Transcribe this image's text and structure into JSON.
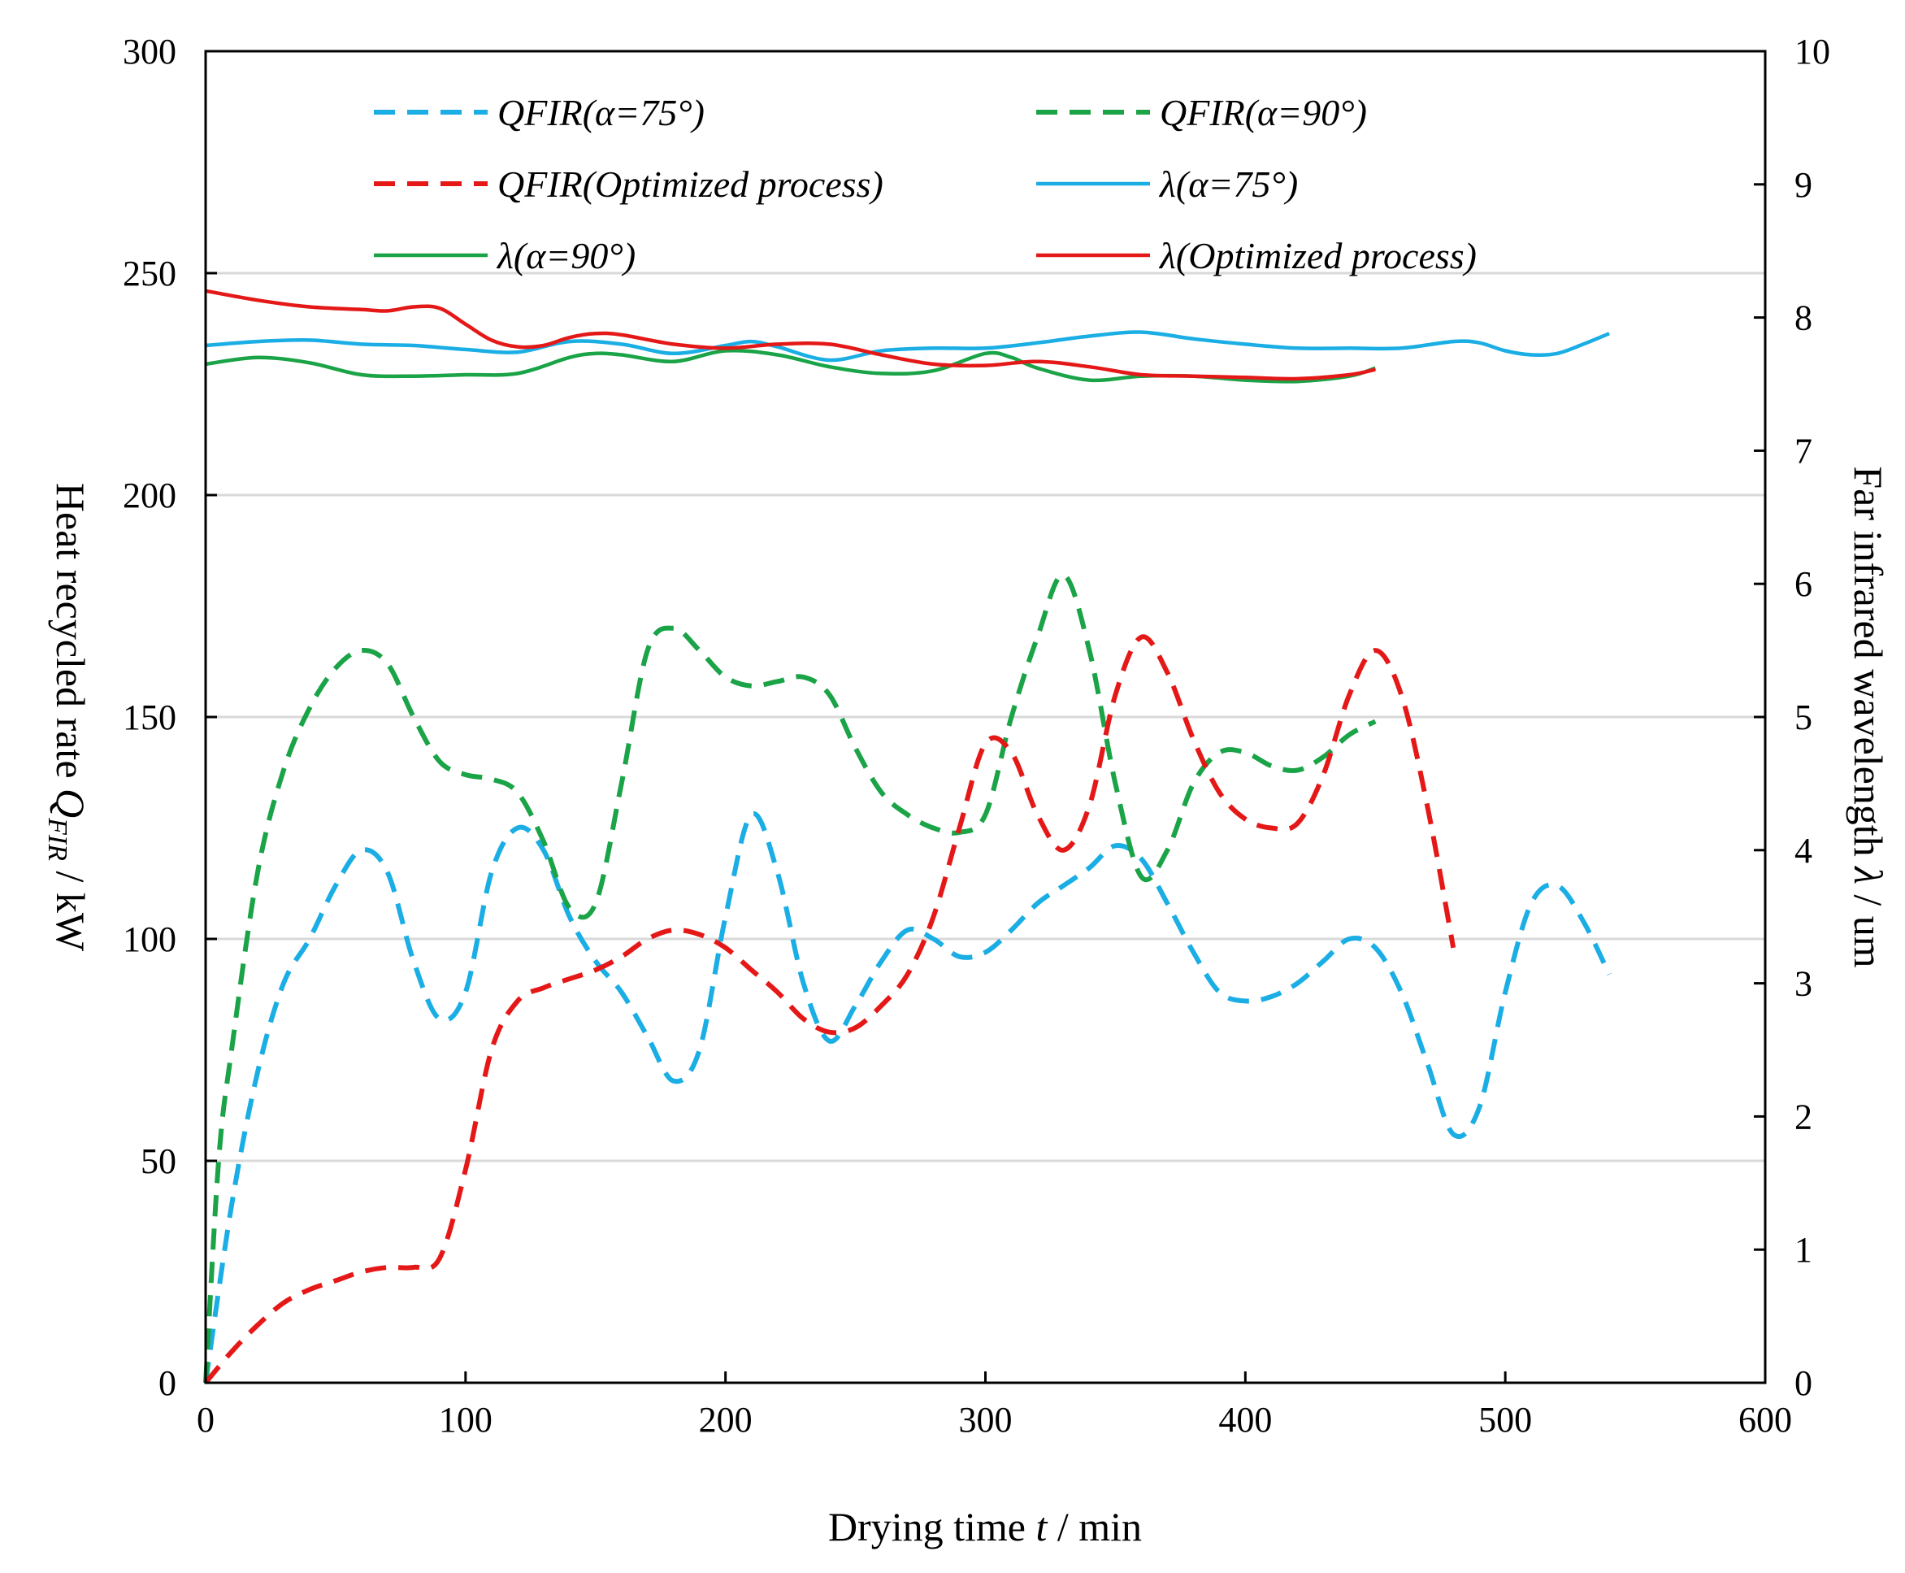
{
  "chart_data": {
    "type": "line",
    "x_axis": {
      "label_prefix": "Drying time ",
      "label_var": "t",
      "label_suffix": " / min",
      "range": [
        0,
        600
      ],
      "ticks": [
        0,
        100,
        200,
        300,
        400,
        500,
        600
      ]
    },
    "y_axis_left": {
      "label_prefix": "Heat recycled rate ",
      "label_var": "Q",
      "label_sub": "FIR",
      "label_suffix": " / kW",
      "range": [
        0,
        300
      ],
      "ticks": [
        0,
        50,
        100,
        150,
        200,
        250,
        300
      ]
    },
    "y_axis_right": {
      "label_prefix": "Far infrared wavelength ",
      "label_var": "λ",
      "label_suffix": " / um",
      "range": [
        0,
        10
      ],
      "ticks": [
        0,
        1,
        2,
        3,
        4,
        5,
        6,
        7,
        8,
        9,
        10
      ]
    },
    "grid": "horizontal",
    "legend_position": "top",
    "series": [
      {
        "name": "QFIR(α=75°)",
        "axis": "left",
        "style": "dashed",
        "color": "#1aaee5",
        "x": [
          0,
          10,
          20,
          30,
          40,
          50,
          60,
          70,
          80,
          90,
          100,
          110,
          120,
          130,
          140,
          150,
          160,
          170,
          180,
          190,
          200,
          210,
          220,
          230,
          240,
          250,
          260,
          270,
          280,
          290,
          300,
          310,
          320,
          330,
          340,
          350,
          360,
          370,
          380,
          390,
          400,
          410,
          420,
          430,
          440,
          450,
          460,
          470,
          480,
          490,
          500,
          510,
          520,
          530,
          540
        ],
        "y": [
          0,
          40,
          70,
          90,
          100,
          112,
          120,
          115,
          95,
          82,
          88,
          115,
          125,
          120,
          105,
          95,
          88,
          78,
          68,
          75,
          105,
          128,
          115,
          90,
          77,
          85,
          95,
          102,
          100,
          96,
          97,
          102,
          108,
          112,
          116,
          121,
          118,
          108,
          97,
          88,
          86,
          87,
          90,
          95,
          100,
          98,
          88,
          72,
          56,
          62,
          88,
          108,
          112,
          104,
          92
        ]
      },
      {
        "name": "QFIR(α=90°)",
        "axis": "left",
        "style": "dashed",
        "color": "#1aa347",
        "x": [
          0,
          5,
          10,
          20,
          30,
          40,
          50,
          60,
          70,
          80,
          90,
          100,
          110,
          120,
          130,
          140,
          150,
          160,
          170,
          180,
          190,
          200,
          210,
          220,
          230,
          240,
          250,
          260,
          270,
          280,
          290,
          300,
          310,
          320,
          330,
          340,
          350,
          360,
          370,
          380,
          390,
          400,
          410,
          420,
          430,
          440,
          450
        ],
        "y": [
          0,
          50,
          75,
          115,
          138,
          152,
          161,
          165,
          162,
          150,
          140,
          137,
          136,
          133,
          122,
          107,
          108,
          135,
          165,
          170,
          165,
          159,
          157,
          158,
          159,
          155,
          143,
          133,
          128,
          125,
          124,
          128,
          150,
          168,
          182,
          165,
          135,
          114,
          120,
          135,
          142,
          142,
          139,
          138,
          141,
          146,
          149
        ]
      },
      {
        "name": "QFIR(Optimized process)",
        "axis": "left",
        "style": "dashed",
        "color": "#e51818",
        "x": [
          0,
          10,
          20,
          30,
          40,
          50,
          60,
          70,
          80,
          90,
          100,
          110,
          120,
          130,
          140,
          150,
          160,
          170,
          180,
          190,
          200,
          210,
          220,
          230,
          240,
          250,
          260,
          270,
          280,
          290,
          300,
          310,
          320,
          330,
          340,
          350,
          360,
          370,
          380,
          390,
          400,
          410,
          420,
          430,
          440,
          450,
          460,
          470,
          480
        ],
        "y": [
          0,
          7,
          13,
          18,
          21,
          23,
          25,
          26,
          26,
          28,
          48,
          75,
          86,
          89,
          91,
          93,
          96,
          100,
          102,
          101,
          98,
          93,
          88,
          82,
          79,
          80,
          85,
          92,
          105,
          125,
          144,
          142,
          128,
          120,
          130,
          155,
          168,
          160,
          145,
          133,
          127,
          125,
          126,
          137,
          155,
          165,
          155,
          130,
          98
        ]
      },
      {
        "name": "λ(α=75°)",
        "axis": "right",
        "style": "solid",
        "color": "#1aaee5",
        "x": [
          0,
          20,
          40,
          60,
          80,
          100,
          120,
          140,
          160,
          180,
          200,
          210,
          220,
          240,
          260,
          280,
          300,
          320,
          340,
          360,
          380,
          400,
          420,
          440,
          460,
          480,
          490,
          500,
          510,
          520,
          530,
          540
        ],
        "y": [
          7.79,
          7.82,
          7.83,
          7.8,
          7.79,
          7.76,
          7.74,
          7.82,
          7.8,
          7.73,
          7.79,
          7.82,
          7.78,
          7.68,
          7.75,
          7.77,
          7.77,
          7.81,
          7.86,
          7.89,
          7.84,
          7.8,
          7.77,
          7.77,
          7.77,
          7.82,
          7.81,
          7.75,
          7.72,
          7.73,
          7.8,
          7.88
        ]
      },
      {
        "name": "λ(α=90°)",
        "axis": "right",
        "style": "solid",
        "color": "#1aa347",
        "x": [
          0,
          20,
          40,
          60,
          80,
          100,
          120,
          140,
          150,
          160,
          180,
          200,
          220,
          240,
          260,
          280,
          300,
          310,
          320,
          340,
          360,
          380,
          400,
          420,
          440,
          450
        ],
        "y": [
          7.65,
          7.7,
          7.66,
          7.57,
          7.56,
          7.57,
          7.58,
          7.7,
          7.73,
          7.72,
          7.67,
          7.75,
          7.72,
          7.63,
          7.58,
          7.6,
          7.73,
          7.7,
          7.62,
          7.53,
          7.56,
          7.56,
          7.53,
          7.52,
          7.56,
          7.62
        ]
      },
      {
        "name": "λ(Optimized process)",
        "axis": "right",
        "style": "solid",
        "color": "#e51818",
        "x": [
          0,
          20,
          40,
          60,
          70,
          80,
          90,
          100,
          110,
          120,
          130,
          140,
          150,
          160,
          180,
          200,
          220,
          240,
          260,
          280,
          300,
          320,
          340,
          360,
          380,
          400,
          420,
          440,
          450
        ],
        "y": [
          8.2,
          8.13,
          8.08,
          8.06,
          8.05,
          8.08,
          8.07,
          7.95,
          7.83,
          7.78,
          7.79,
          7.85,
          7.88,
          7.87,
          7.8,
          7.77,
          7.8,
          7.8,
          7.72,
          7.65,
          7.64,
          7.67,
          7.63,
          7.57,
          7.56,
          7.55,
          7.54,
          7.57,
          7.61
        ]
      }
    ]
  }
}
